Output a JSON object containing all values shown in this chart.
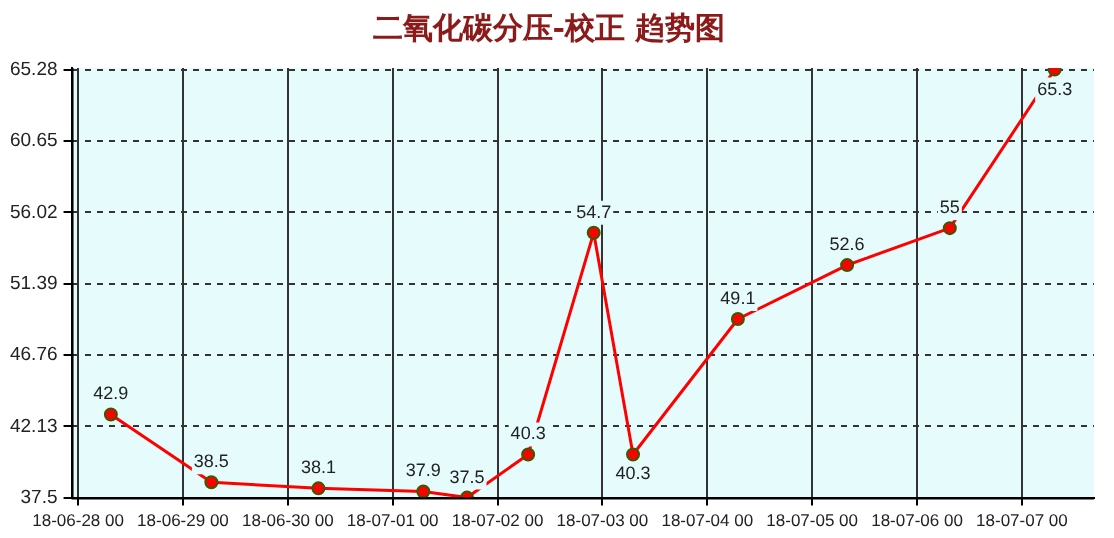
{
  "chart_data": {
    "type": "line",
    "title": "二氧化碳分压-校正 趋势图",
    "x": [
      "--06-28T07:30",
      "--06-29T06:30",
      "--06-30T07:00",
      "--07-01T07:00",
      "--07-01T17:00",
      "--07-02T07:00",
      "--07-02T22:00",
      "--07-03T07:00",
      "--07-04T07:00",
      "--07-05T08:00",
      "--07-06T07:30",
      "--07-07T07:30"
    ],
    "series": [
      {
        "color": "#ff0000",
        "values": [
          42.9,
          38.5,
          38.1,
          37.9,
          37.5,
          40.3,
          54.7,
          40.3,
          49.1,
          52.6,
          55,
          65.3
        ]
      }
    ],
    "xlim": [
      "--06-27T22:30",
      "--07-07T16:30"
    ],
    "xticks": [
      {
        "value": "--06-28",
        "label": "18-06-28 00"
      },
      {
        "value": "--06-29",
        "label": "18-06-29 00"
      },
      {
        "value": "--06-30",
        "label": "18-06-30 00"
      },
      {
        "value": "--07-01",
        "label": "18-07-01 00"
      },
      {
        "value": "--07-02",
        "label": "18-07-02 00"
      },
      {
        "value": "--07-03",
        "label": "18-07-03 00"
      },
      {
        "value": "--07-04",
        "label": "18-07-04 00"
      },
      {
        "value": "--07-05",
        "label": "18-07-05 00"
      },
      {
        "value": "--07-06",
        "label": "18-07-06 00"
      },
      {
        "value": "--07-07",
        "label": "18-07-07 00"
      }
    ],
    "ylim": [
      37.5,
      65.4
    ],
    "yticks": [
      37.5,
      42.13,
      46.76,
      51.39,
      56.02,
      60.65,
      65.28
    ],
    "grid": true,
    "marker": "circle",
    "line_style": "solid",
    "data_labels": true,
    "legend": false
  }
}
